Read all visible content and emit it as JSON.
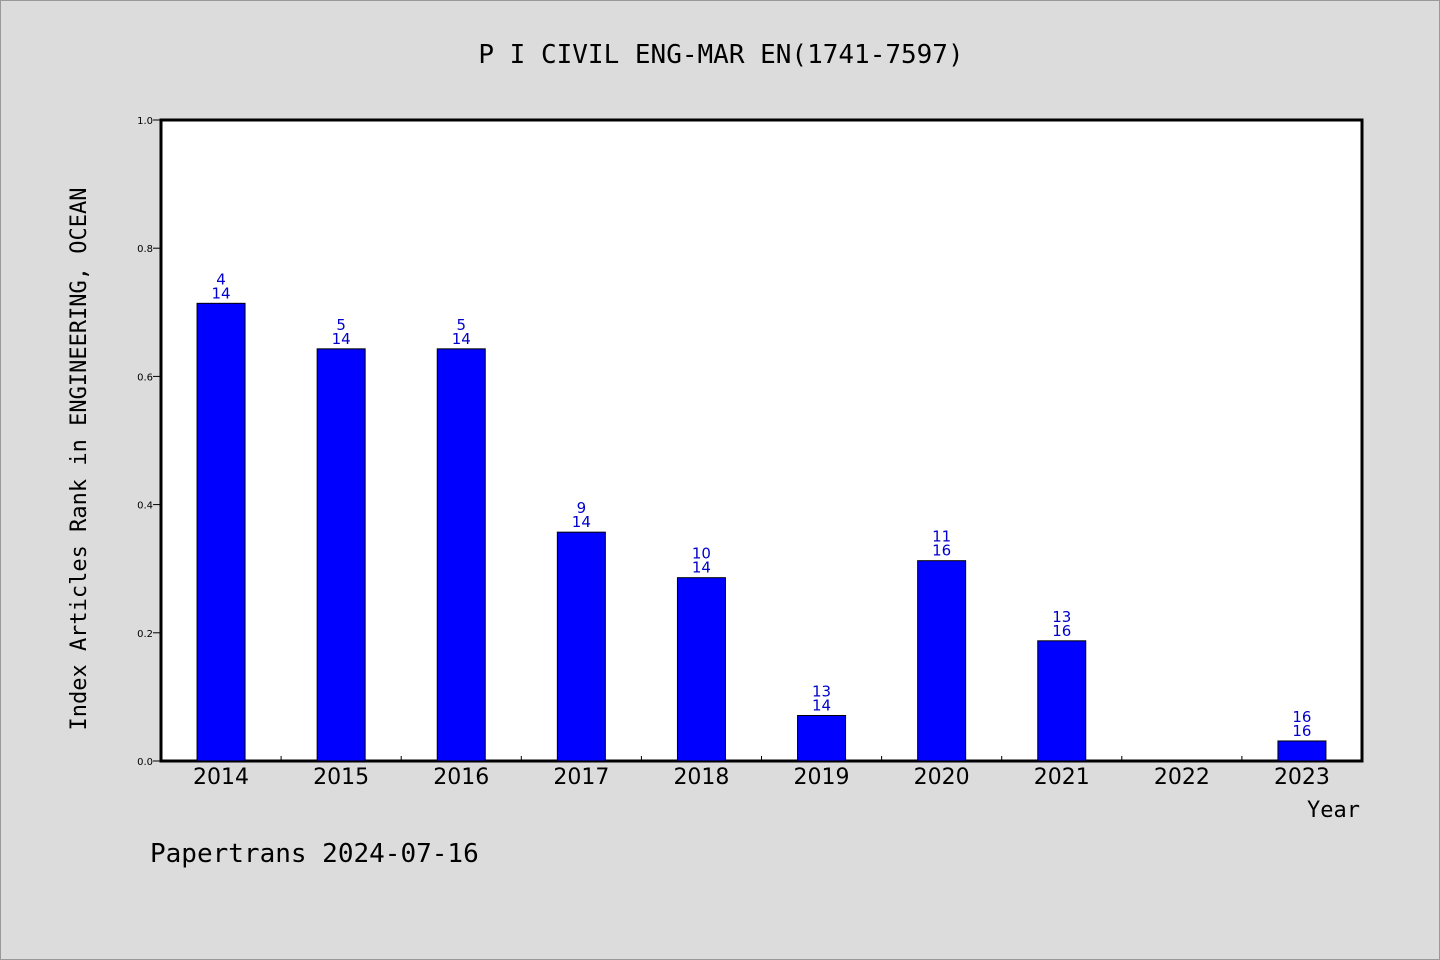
{
  "chart_data": {
    "type": "bar",
    "title": "P I CIVIL ENG-MAR EN(1741-7597)",
    "xlabel": "Year",
    "ylabel": "Index Articles Rank in ENGINEERING, OCEAN",
    "ylim": [
      0,
      1.0
    ],
    "yticks": [
      "0.0",
      "0.2",
      "0.4",
      "0.6",
      "0.8",
      "1.0"
    ],
    "categories": [
      "2014",
      "2015",
      "2016",
      "2017",
      "2018",
      "2019",
      "2020",
      "2021",
      "2022",
      "2023"
    ],
    "values": [
      0.714,
      0.643,
      0.643,
      0.357,
      0.286,
      0.071,
      0.3125,
      0.1875,
      null,
      0.03125
    ],
    "labels": [
      [
        "4",
        "14"
      ],
      [
        "5",
        "14"
      ],
      [
        "5",
        "14"
      ],
      [
        "9",
        "14"
      ],
      [
        "10",
        "14"
      ],
      [
        "13",
        "14"
      ],
      [
        "11",
        "16"
      ],
      [
        "13",
        "16"
      ],
      null,
      [
        "16",
        "16"
      ]
    ],
    "bar_color": "#0000ff",
    "label_color": "#0000cc",
    "grid": false,
    "legend": "none"
  },
  "footer": "Papertrans 2024-07-16"
}
